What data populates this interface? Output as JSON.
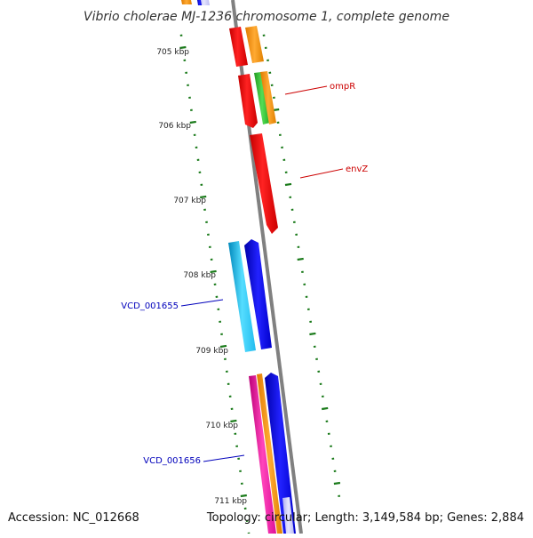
{
  "title": "Vibrio cholerae MJ-1236 chromosome 1, complete genome",
  "footer": {
    "accession": "Accession: NC_012668",
    "summary": "Topology: circular; Length: 3,149,584 bp; Genes: 2,884"
  },
  "scale_labels": [
    "705 kbp",
    "706 kbp",
    "707 kbp",
    "708 kbp",
    "709 kbp",
    "710 kbp",
    "711 kbp"
  ],
  "gene_labels": [
    {
      "text": "ompR",
      "color": "#cc0000"
    },
    {
      "text": "envZ",
      "color": "#cc0000"
    },
    {
      "text": "VCD_001655",
      "color": "#0000bb"
    },
    {
      "text": "VCD_001656",
      "color": "#0000bb"
    }
  ],
  "colors": {
    "backbone": "#808080",
    "tick": "#1a7a1a",
    "red": "#ff0000",
    "orange": "#ff9900",
    "green": "#33cc33",
    "cyan": "#22ccff",
    "blue": "#0000ee",
    "magenta": "#ee1199",
    "lavender": "#ccccff"
  }
}
